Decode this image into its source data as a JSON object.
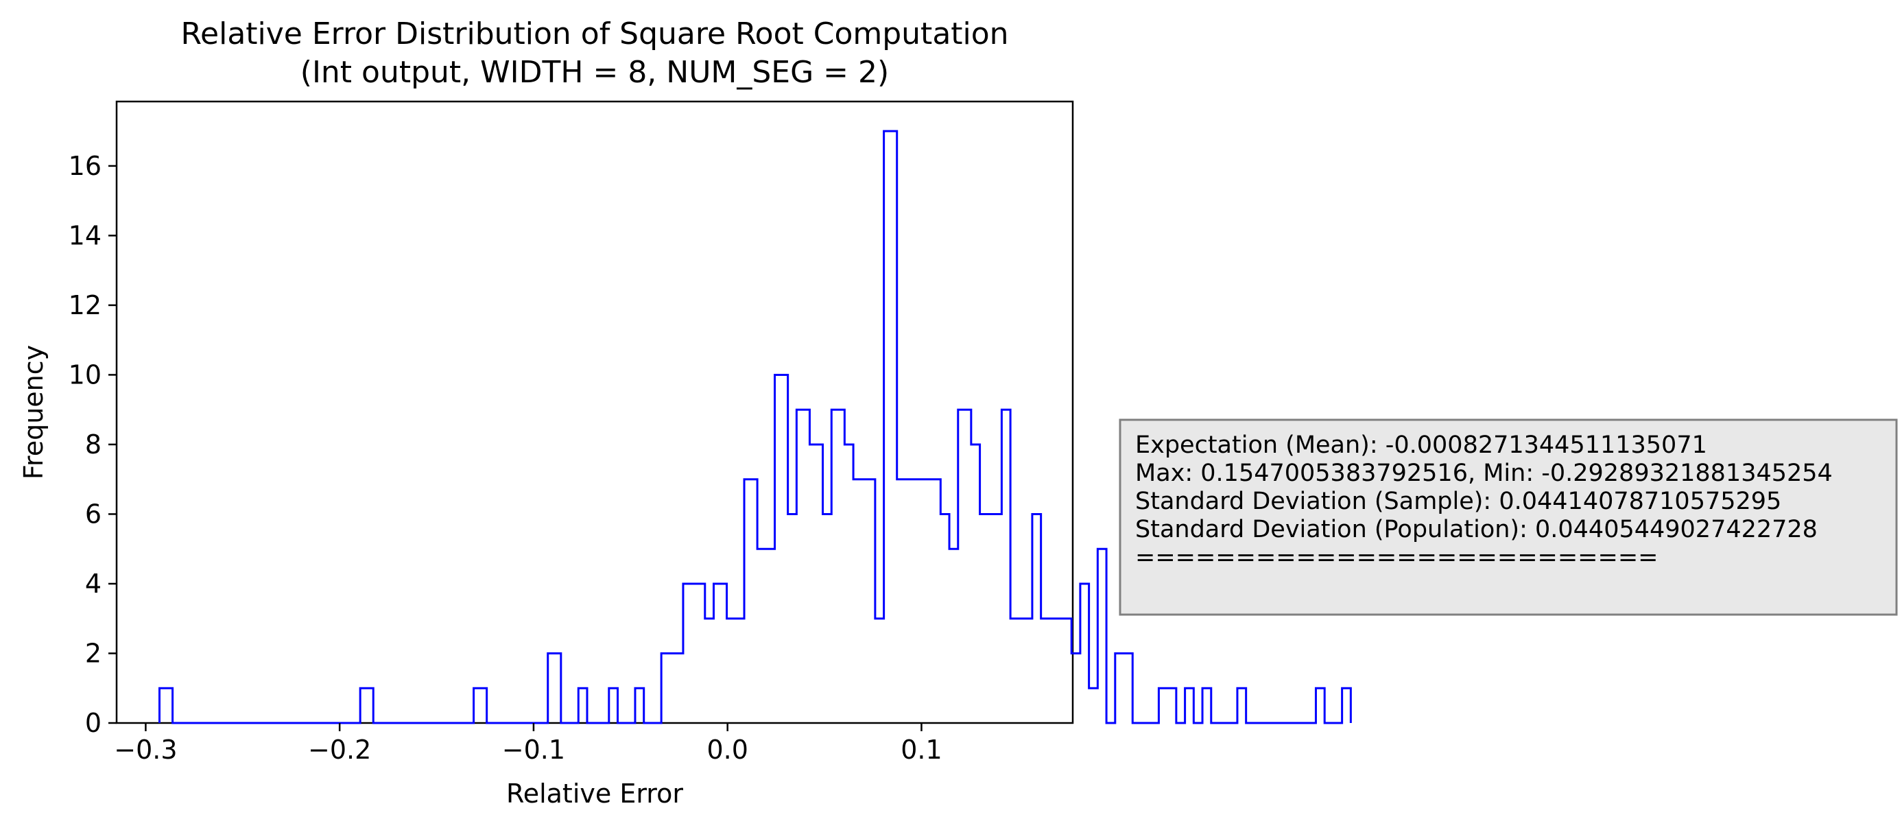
{
  "chart_data": {
    "type": "histogram",
    "title_line1": "Relative Error Distribution of Square Root Computation",
    "title_line2": "(Int output, WIDTH = 8, NUM_SEG = 2)",
    "xlabel": "Relative Error",
    "ylabel": "Frequency",
    "xlim": [
      -0.315,
      0.178
    ],
    "ylim": [
      0,
      17.85
    ],
    "xticks": [
      -0.3,
      -0.2,
      -0.1,
      0.0,
      0.1
    ],
    "xtick_labels": [
      "−0.3",
      "−0.2",
      "−0.1",
      "0.0",
      "0.1"
    ],
    "yticks": [
      0,
      2,
      4,
      6,
      8,
      10,
      12,
      14,
      16
    ],
    "ytick_labels": [
      "0",
      "2",
      "4",
      "6",
      "8",
      "10",
      "12",
      "14",
      "16"
    ],
    "histtype": "step",
    "line_color": "#0000ff",
    "grid": false,
    "bins": {
      "x_start": -0.2928932188,
      "bin_width": 0.00225,
      "counts": [
        1,
        1,
        1,
        0,
        0,
        0,
        0,
        0,
        0,
        0,
        0,
        0,
        0,
        0,
        0,
        0,
        0,
        0,
        0,
        0,
        0,
        0,
        0,
        0,
        0,
        0,
        0,
        0,
        0,
        0,
        0,
        0,
        0,
        0,
        0,
        0,
        0,
        0,
        0,
        0,
        0,
        0,
        0,
        0,
        0,
        0,
        1,
        1,
        1,
        0,
        0,
        0,
        0,
        0,
        0,
        0,
        0,
        0,
        0,
        0,
        0,
        0,
        0,
        0,
        0,
        0,
        0,
        0,
        0,
        0,
        0,
        0,
        1,
        1,
        1,
        0,
        0,
        0,
        0,
        0,
        0,
        0,
        0,
        0,
        0,
        0,
        0,
        0,
        0,
        2,
        2,
        2,
        0,
        0,
        0,
        0,
        1,
        1,
        0,
        0,
        0,
        0,
        0,
        1,
        1,
        0,
        0,
        0,
        0,
        1,
        1,
        0,
        0,
        0,
        0,
        2,
        2,
        2,
        2,
        2,
        4,
        4,
        4,
        4,
        4,
        3,
        3,
        4,
        4,
        4,
        3,
        3,
        3,
        3,
        7,
        7,
        7,
        5,
        5,
        5,
        5,
        10,
        10,
        10,
        6,
        6,
        9,
        9,
        9,
        8,
        8,
        8,
        6,
        6,
        9,
        9,
        9,
        8,
        8,
        7,
        7,
        7,
        7,
        7,
        3,
        3,
        17,
        17,
        17,
        7,
        7,
        7,
        7,
        7,
        7,
        7,
        7,
        7,
        7,
        6,
        6,
        5,
        5,
        9,
        9,
        9,
        8,
        8,
        6,
        6,
        6,
        6,
        6,
        9,
        9,
        3,
        3,
        3,
        3,
        3,
        6,
        6,
        3,
        3,
        3,
        3,
        3,
        3,
        3,
        2,
        2,
        4,
        4,
        1,
        1,
        5,
        5,
        0,
        0,
        2,
        2,
        2,
        2,
        0,
        0,
        0,
        0,
        0,
        0,
        1,
        1,
        1,
        1,
        0,
        0,
        1,
        1,
        0,
        0,
        1,
        1,
        0,
        0,
        0,
        0,
        0,
        0,
        1,
        1,
        0,
        0,
        0,
        0,
        0,
        0,
        0,
        0,
        0,
        0,
        0,
        0,
        0,
        0,
        0,
        0,
        1,
        1,
        0,
        0,
        0,
        0,
        1,
        1
      ]
    }
  },
  "stats_box": {
    "lines": [
      "Expectation (Mean): -0.0008271344511135071",
      "Max: 0.1547005383792516, Min: -0.29289321881345254",
      "Standard Deviation (Sample): 0.04414078710575295",
      "Standard Deviation (Population): 0.04405449027422728",
      "=========================="
    ],
    "background": "#e8e8e8",
    "border": "#808080"
  }
}
